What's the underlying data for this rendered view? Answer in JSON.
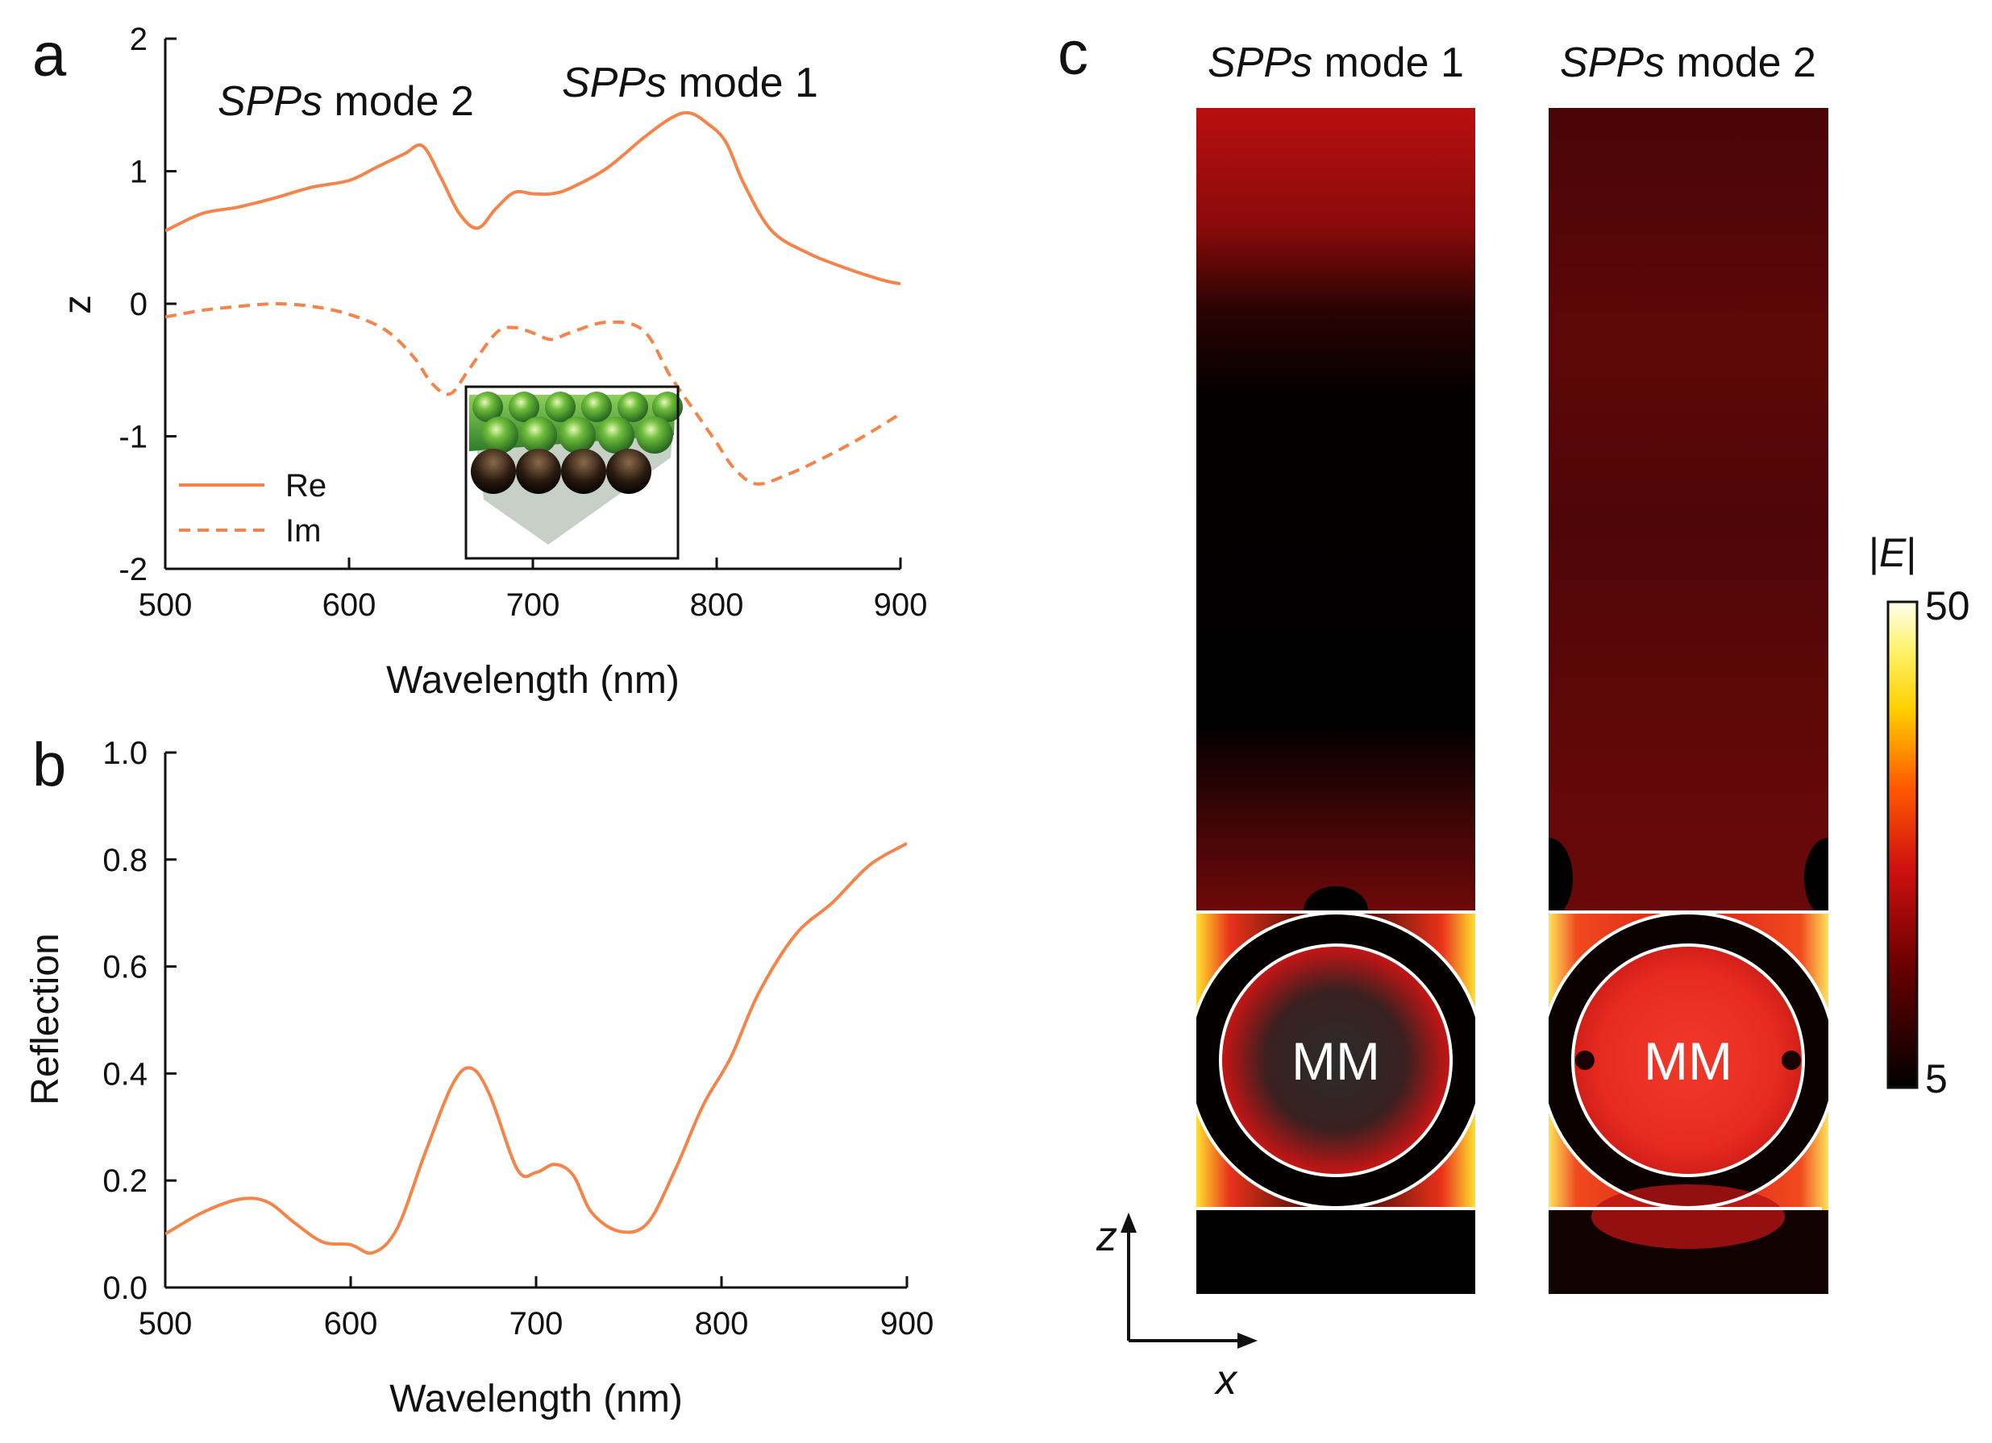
{
  "panels": {
    "a": "a",
    "b": "b",
    "c": "c"
  },
  "chart_data": [
    {
      "panel": "a",
      "type": "line",
      "xlabel": "Wavelength (nm)",
      "ylabel": "z",
      "xlim": [
        500,
        900
      ],
      "ylim": [
        -2,
        2
      ],
      "xticks": [
        "500",
        "600",
        "700",
        "800",
        "900"
      ],
      "yticks": [
        "2",
        "1",
        "0",
        "-1",
        "-2"
      ],
      "annotations": {
        "mode2": {
          "italic": "SPPs",
          "rest": " mode 2"
        },
        "mode1": {
          "italic": "SPPs",
          "rest": " mode 1"
        }
      },
      "legend": [
        "Re",
        "Im"
      ],
      "color": "#f5844a",
      "series": [
        {
          "name": "Re",
          "style": "solid",
          "x": [
            500,
            520,
            540,
            560,
            580,
            600,
            615,
            630,
            640,
            650,
            660,
            670,
            680,
            690,
            700,
            710,
            720,
            740,
            760,
            775,
            785,
            795,
            805,
            815,
            830,
            850,
            870,
            890,
            900
          ],
          "y": [
            0.55,
            0.68,
            0.73,
            0.8,
            0.88,
            0.93,
            1.03,
            1.13,
            1.19,
            0.95,
            0.68,
            0.57,
            0.72,
            0.84,
            0.83,
            0.83,
            0.87,
            1.02,
            1.25,
            1.4,
            1.44,
            1.36,
            1.22,
            0.9,
            0.55,
            0.38,
            0.27,
            0.18,
            0.15
          ]
        },
        {
          "name": "Im",
          "style": "dashed",
          "x": [
            500,
            520,
            540,
            560,
            580,
            600,
            620,
            635,
            645,
            655,
            665,
            680,
            690,
            700,
            710,
            720,
            740,
            760,
            775,
            790,
            800,
            810,
            822,
            840,
            860,
            880,
            900
          ],
          "y": [
            -0.1,
            -0.05,
            -0.02,
            0.0,
            -0.02,
            -0.08,
            -0.2,
            -0.4,
            -0.6,
            -0.68,
            -0.5,
            -0.22,
            -0.18,
            -0.22,
            -0.27,
            -0.22,
            -0.14,
            -0.2,
            -0.55,
            -0.85,
            -1.05,
            -1.25,
            -1.36,
            -1.28,
            -1.15,
            -1.0,
            -0.83
          ]
        }
      ]
    },
    {
      "panel": "b",
      "type": "line",
      "xlabel": "Wavelength (nm)",
      "ylabel": "Reflection",
      "xlim": [
        500,
        900
      ],
      "ylim": [
        0,
        1
      ],
      "xticks": [
        "500",
        "600",
        "700",
        "800",
        "900"
      ],
      "yticks": [
        "1.0",
        "0.8",
        "0.6",
        "0.4",
        "0.2",
        "0.0"
      ],
      "color": "#f5844a",
      "series": [
        {
          "name": "Reflection",
          "style": "solid",
          "x": [
            500,
            520,
            540,
            555,
            570,
            585,
            600,
            612,
            625,
            640,
            655,
            665,
            675,
            690,
            700,
            710,
            720,
            730,
            745,
            760,
            775,
            790,
            805,
            820,
            840,
            860,
            880,
            900
          ],
          "y": [
            0.1,
            0.14,
            0.165,
            0.16,
            0.12,
            0.085,
            0.08,
            0.065,
            0.11,
            0.25,
            0.38,
            0.41,
            0.36,
            0.22,
            0.215,
            0.23,
            0.21,
            0.14,
            0.105,
            0.12,
            0.22,
            0.34,
            0.43,
            0.55,
            0.66,
            0.72,
            0.79,
            0.83
          ]
        }
      ]
    }
  ],
  "field_maps": {
    "mode1_label": {
      "italic": "SPPs",
      "rest": " mode 1"
    },
    "mode2_label": {
      "italic": "SPPs",
      "rest": " mode 2"
    },
    "mm_label": "MM",
    "axis_z": "z",
    "axis_x": "x",
    "colorbar": {
      "title_prefix": "|",
      "title_italic": "E",
      "title_suffix": "|",
      "max": "50",
      "min": "5"
    }
  }
}
